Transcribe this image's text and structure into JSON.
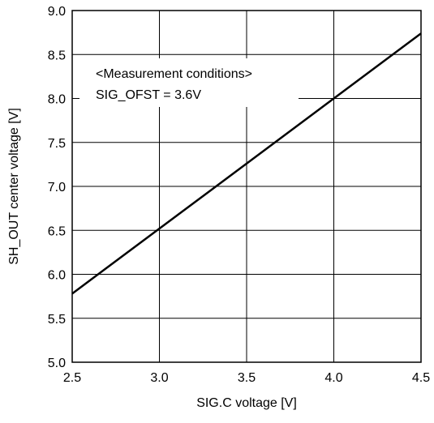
{
  "chart_data": {
    "type": "line",
    "title": "",
    "xlabel": "SIG.C voltage [V]",
    "ylabel": "SH_OUT center voltage [V]",
    "xlim": [
      2.5,
      4.5
    ],
    "ylim": [
      5.0,
      9.0
    ],
    "xticks": [
      2.5,
      3.0,
      3.5,
      4.0,
      4.5
    ],
    "yticks": [
      5.0,
      5.5,
      6.0,
      6.5,
      7.0,
      7.5,
      8.0,
      8.5,
      9.0
    ],
    "xtick_labels": [
      "2.5",
      "3.0",
      "3.5",
      "4.0",
      "4.5"
    ],
    "ytick_labels": [
      "5.0",
      "5.5",
      "6.0",
      "6.5",
      "7.0",
      "7.5",
      "8.0",
      "8.5",
      "9.0"
    ],
    "grid": true,
    "series": [
      {
        "x": [
          2.5,
          4.5
        ],
        "y": [
          5.78,
          8.74
        ]
      }
    ],
    "annotation_lines": [
      "<Measurement conditions>",
      "SIG_OFST = 3.6V"
    ]
  },
  "colors": {
    "line": "#000000",
    "grid": "#000000",
    "background": "#ffffff"
  }
}
